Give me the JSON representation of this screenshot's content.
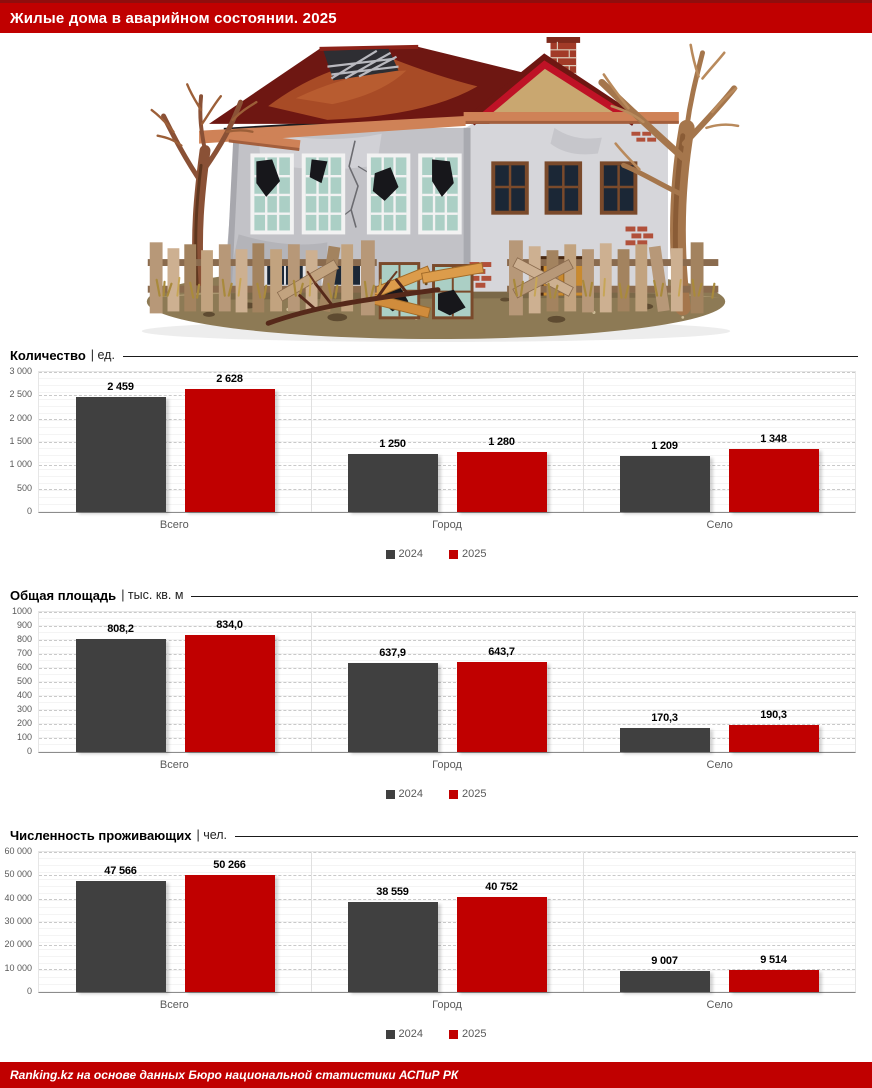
{
  "header": {
    "title": "Жилые дома в аварийном состоянии. 2025",
    "bg_color": "#C00000"
  },
  "footer": {
    "text": "Ranking.kz на основе данных Бюро национальной статистики АСПиР РК",
    "bg_color": "#C00000"
  },
  "legend": {
    "items": [
      {
        "label": "2024",
        "color": "#404040"
      },
      {
        "label": "2025",
        "color": "#C00000"
      }
    ]
  },
  "illustration": {
    "name": "dilapidated-house"
  },
  "chart_data": [
    {
      "type": "bar",
      "title": "Количество",
      "unit": "| ед.",
      "categories": [
        "Всего",
        "Город",
        "Село"
      ],
      "series": [
        {
          "name": "2024",
          "color": "#404040",
          "values": [
            2459,
            1250,
            1209
          ],
          "labels": [
            "2 459",
            "1 250",
            "1 209"
          ]
        },
        {
          "name": "2025",
          "color": "#C00000",
          "values": [
            2628,
            1280,
            1348
          ],
          "labels": [
            "2 628",
            "1 280",
            "1 348"
          ]
        }
      ],
      "ylim": [
        0,
        3000
      ],
      "yticks": [
        {
          "value": 0,
          "label": "0"
        },
        {
          "value": 500,
          "label": "500"
        },
        {
          "value": 1000,
          "label": "1 000"
        },
        {
          "value": 1500,
          "label": "1 500"
        },
        {
          "value": 2000,
          "label": "2 000"
        },
        {
          "value": 2500,
          "label": "2 500"
        },
        {
          "value": 3000,
          "label": "3 000"
        }
      ],
      "grid": true,
      "legend_position": "bottom"
    },
    {
      "type": "bar",
      "title": "Общая площадь",
      "unit": "| тыс. кв. м",
      "categories": [
        "Всего",
        "Город",
        "Село"
      ],
      "series": [
        {
          "name": "2024",
          "color": "#404040",
          "values": [
            808.2,
            637.9,
            170.3
          ],
          "labels": [
            "808,2",
            "637,9",
            "170,3"
          ]
        },
        {
          "name": "2025",
          "color": "#C00000",
          "values": [
            834.0,
            643.7,
            190.3
          ],
          "labels": [
            "834,0",
            "643,7",
            "190,3"
          ]
        }
      ],
      "ylim": [
        0,
        1000
      ],
      "yticks": [
        {
          "value": 0,
          "label": "0"
        },
        {
          "value": 100,
          "label": "100"
        },
        {
          "value": 200,
          "label": "200"
        },
        {
          "value": 300,
          "label": "300"
        },
        {
          "value": 400,
          "label": "400"
        },
        {
          "value": 500,
          "label": "500"
        },
        {
          "value": 600,
          "label": "600"
        },
        {
          "value": 700,
          "label": "700"
        },
        {
          "value": 800,
          "label": "800"
        },
        {
          "value": 900,
          "label": "900"
        },
        {
          "value": 1000,
          "label": "1000"
        }
      ],
      "grid": true,
      "legend_position": "bottom"
    },
    {
      "type": "bar",
      "title": "Численность проживающих",
      "unit": "| чел.",
      "categories": [
        "Всего",
        "Город",
        "Село"
      ],
      "series": [
        {
          "name": "2024",
          "color": "#404040",
          "values": [
            47566,
            38559,
            9007
          ],
          "labels": [
            "47 566",
            "38 559",
            "9 007"
          ]
        },
        {
          "name": "2025",
          "color": "#C00000",
          "values": [
            50266,
            40752,
            9514
          ],
          "labels": [
            "50 266",
            "40 752",
            "9 514"
          ]
        }
      ],
      "ylim": [
        0,
        60000
      ],
      "yticks": [
        {
          "value": 0,
          "label": "0"
        },
        {
          "value": 10000,
          "label": "10 000"
        },
        {
          "value": 20000,
          "label": "20 000"
        },
        {
          "value": 30000,
          "label": "30 000"
        },
        {
          "value": 40000,
          "label": "40 000"
        },
        {
          "value": 50000,
          "label": "50 000"
        },
        {
          "value": 60000,
          "label": "60 000"
        }
      ],
      "grid": true,
      "legend_position": "bottom"
    }
  ]
}
